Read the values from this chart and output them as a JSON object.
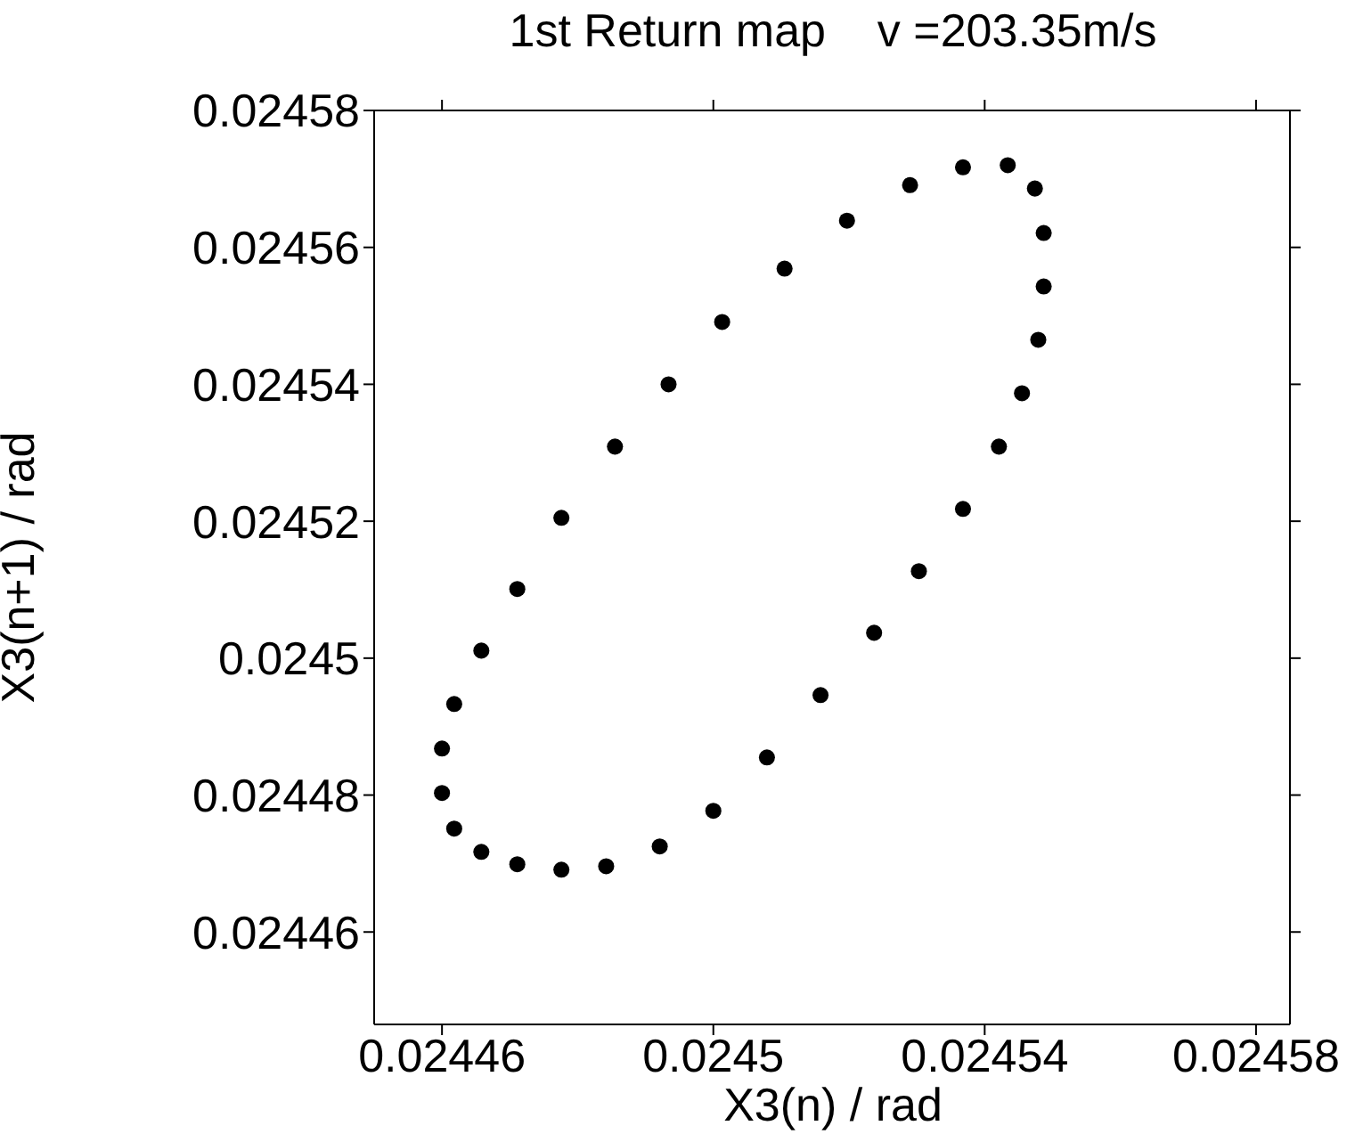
{
  "chart_data": {
    "type": "scatter",
    "title": "1st Return map    v =203.35m/s",
    "xlabel": "X3(n) / rad",
    "ylabel": "X3(n+1) / rad",
    "xlim": [
      0.02445,
      0.024585
    ],
    "xticks": [
      0.02446,
      0.0245,
      0.02454,
      0.02458
    ],
    "ylim": [
      0.0244465,
      0.02458
    ],
    "yticks": [
      0.02446,
      0.02448,
      0.0245,
      0.02452,
      0.02454,
      0.02456,
      0.02458
    ],
    "series": [
      {
        "color": "#000000",
        "x": [
          0.0245434,
          0.0245474,
          0.0245487,
          0.0245487,
          0.0245479,
          0.0245455,
          0.0245421,
          0.0245368,
          0.0245303,
          0.0245237,
          0.0245158,
          0.0245079,
          0.0245,
          0.0244921,
          0.0244842,
          0.0244776,
          0.0244711,
          0.0244658,
          0.0244618,
          0.02446,
          0.02446,
          0.0244618,
          0.0244658,
          0.0244711,
          0.0244776,
          0.0244855,
          0.0244934,
          0.0245013,
          0.0245105,
          0.0245197,
          0.024529,
          0.0245368
        ],
        "values": [
          0.024572,
          0.0245686,
          0.0245621,
          0.0245543,
          0.0245465,
          0.0245387,
          0.0245309,
          0.0245218,
          0.0245127,
          0.0245037,
          0.0244946,
          0.0244855,
          0.0244777,
          0.0244725,
          0.0244696,
          0.0244691,
          0.0244699,
          0.0244717,
          0.0244751,
          0.0244803,
          0.0244868,
          0.0244933,
          0.0245011,
          0.0245101,
          0.0245205,
          0.0245309,
          0.02454,
          0.0245491,
          0.0245569,
          0.0245639,
          0.0245691,
          0.0245717
        ]
      }
    ]
  }
}
